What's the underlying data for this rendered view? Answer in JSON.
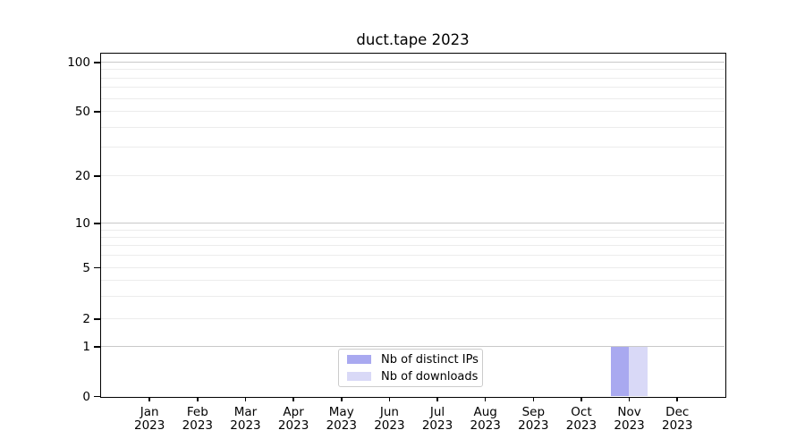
{
  "chart_data": {
    "type": "bar",
    "title": "duct.tape 2023",
    "months": [
      "Jan",
      "Feb",
      "Mar",
      "Apr",
      "May",
      "Jun",
      "Jul",
      "Aug",
      "Sep",
      "Oct",
      "Nov",
      "Dec"
    ],
    "year": "2023",
    "series": [
      {
        "name": "Nb of distinct IPs",
        "color": "#a9a9f0",
        "values": [
          0,
          0,
          0,
          0,
          0,
          0,
          0,
          0,
          0,
          0,
          1,
          0
        ]
      },
      {
        "name": "Nb of downloads",
        "color": "#d9d9f7",
        "values": [
          0,
          0,
          0,
          0,
          0,
          0,
          0,
          0,
          0,
          0,
          1,
          0
        ]
      }
    ],
    "y_axis": {
      "scale": "symlog",
      "lim": [
        0,
        113
      ],
      "ticks": [
        0,
        1,
        2,
        5,
        10,
        20,
        50,
        100
      ],
      "major_gridlines": [
        1,
        10,
        100
      ],
      "minor_gridlines": [
        2,
        3,
        4,
        5,
        6,
        7,
        8,
        9,
        20,
        30,
        40,
        50,
        60,
        70,
        80,
        90
      ]
    },
    "grid": "horizontal",
    "legend_position": "lower center inside"
  }
}
